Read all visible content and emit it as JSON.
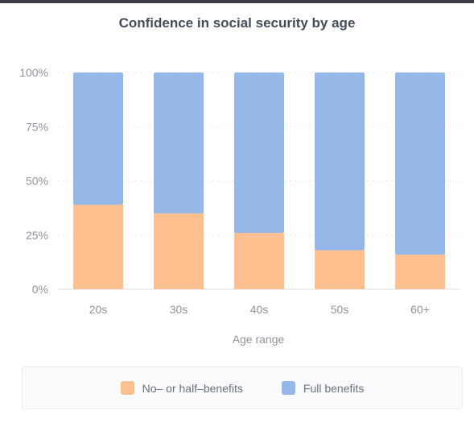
{
  "chart_data": {
    "type": "bar",
    "stacked": true,
    "title": "Confidence in social security by age",
    "xlabel": "Age range",
    "ylabel": "",
    "categories": [
      "20s",
      "30s",
      "40s",
      "50s",
      "60+"
    ],
    "series": [
      {
        "name": "No– or half–benefits",
        "color": "#ffbf8e",
        "values": [
          39,
          35,
          26,
          18,
          16
        ]
      },
      {
        "name": "Full benefits",
        "color": "#96b8e8",
        "values": [
          61,
          65,
          74,
          82,
          84
        ]
      }
    ],
    "yticks": [
      "0%",
      "25%",
      "50%",
      "75%",
      "100%"
    ],
    "ylim": [
      0,
      100
    ],
    "grid": true,
    "legend_position": "bottom"
  }
}
